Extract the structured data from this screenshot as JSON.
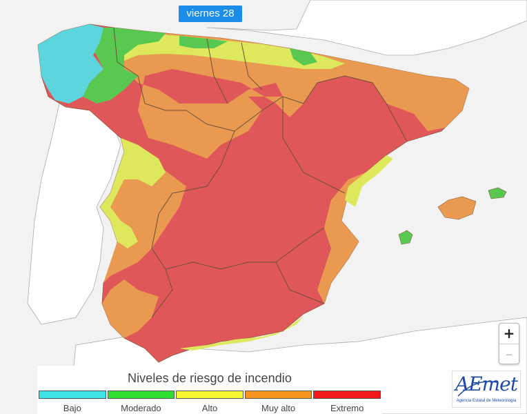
{
  "map": {
    "day_label": "viernes 28",
    "zoom_in": "+",
    "zoom_out": "–"
  },
  "legend": {
    "title": "Niveles de riesgo de incendio",
    "levels": [
      {
        "label": "Bajo",
        "color": "#3ce4e8"
      },
      {
        "label": "Moderado",
        "color": "#2fe02f"
      },
      {
        "label": "Alto",
        "color": "#f5f530"
      },
      {
        "label": "Muy alto",
        "color": "#f7941d"
      },
      {
        "label": "Extremo",
        "color": "#f01818"
      }
    ]
  },
  "map_colors": {
    "sea": "#f2f2f2",
    "land": "#ffffff",
    "bajo": "#5cd6dc",
    "moderado": "#58c850",
    "alto": "#dde85c",
    "muy_alto": "#e99a50",
    "extremo": "#e0575a"
  },
  "logo": {
    "name": "AEmet",
    "subtitle": "Agencia Estatal de Meteorología"
  }
}
